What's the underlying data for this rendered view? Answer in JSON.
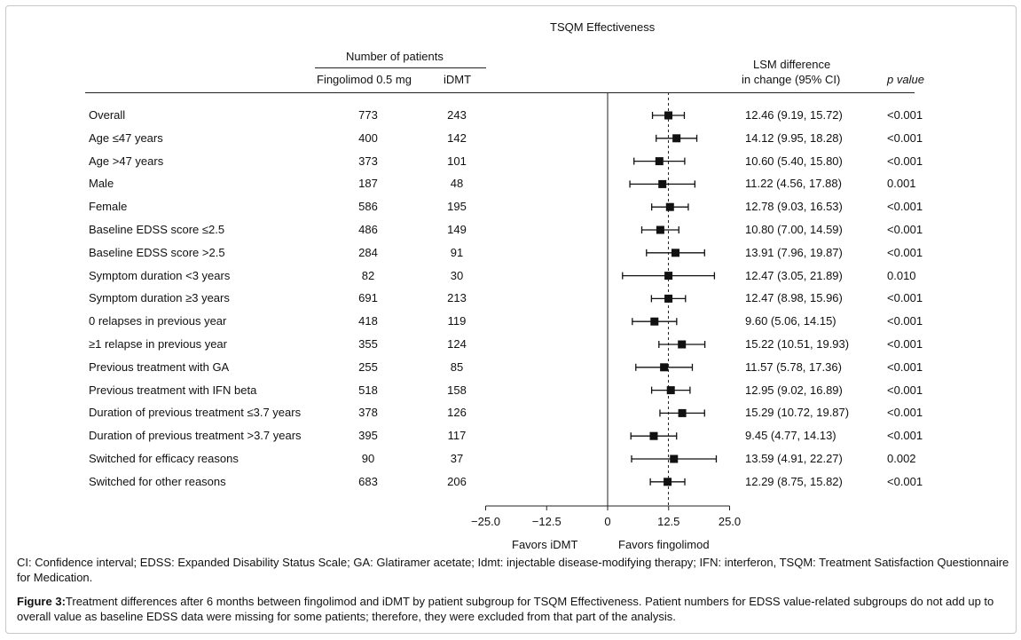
{
  "figure": {
    "panel_title": "TSQM Effectiveness",
    "patients_header": "Number of patients",
    "col_fingolimod": "Fingolimod 0.5 mg",
    "col_idmt": "iDMT",
    "lsm_header_line1": "LSM difference",
    "lsm_header_line2": "in change (95% CI)",
    "p_header": "p value",
    "favors_left": "Favors iDMT",
    "favors_right": "Favors fingolimod",
    "footnote": "CI: Confidence interval; EDSS: Expanded Disability Status Scale; GA: Glatiramer acetate; Idmt: injectable disease-modifying therapy; IFN: interferon, TSQM: Treatment Satisfaction Questionnaire for Medication.",
    "caption_label": "Figure 3:",
    "caption_text": "Treatment differences after 6 months between fingolimod and iDMT by patient subgroup for TSQM Effectiveness. Patient numbers for EDSS value-related subgroups do not add up to overall value as baseline EDSS data were missing for some patients; therefore, they were excluded from that part of the analysis."
  },
  "chart_data": {
    "type": "forest",
    "reference_line": 12.46,
    "xlim": [
      -25,
      25
    ],
    "xticks": [
      "−25.0",
      "−12.5",
      "0",
      "12.5",
      "25.0"
    ],
    "xtick_values": [
      -25,
      -12.5,
      0,
      12.5,
      25
    ],
    "rows": [
      {
        "label": "Overall",
        "fingolimod": "773",
        "idmt": "243",
        "est": 12.46,
        "lo": 9.19,
        "hi": 15.72,
        "ci_text": "12.46 (9.19, 15.72)",
        "p": "<0.001"
      },
      {
        "label": "Age ≤47 years",
        "fingolimod": "400",
        "idmt": "142",
        "est": 14.12,
        "lo": 9.95,
        "hi": 18.28,
        "ci_text": "14.12 (9.95, 18.28)",
        "p": "<0.001"
      },
      {
        "label": "Age >47 years",
        "fingolimod": "373",
        "idmt": "101",
        "est": 10.6,
        "lo": 5.4,
        "hi": 15.8,
        "ci_text": "10.60 (5.40, 15.80)",
        "p": "<0.001"
      },
      {
        "label": "Male",
        "fingolimod": "187",
        "idmt": "48",
        "est": 11.22,
        "lo": 4.56,
        "hi": 17.88,
        "ci_text": "11.22 (4.56, 17.88)",
        "p": "0.001"
      },
      {
        "label": "Female",
        "fingolimod": "586",
        "idmt": "195",
        "est": 12.78,
        "lo": 9.03,
        "hi": 16.53,
        "ci_text": "12.78 (9.03, 16.53)",
        "p": "<0.001"
      },
      {
        "label": "Baseline EDSS score ≤2.5",
        "fingolimod": "486",
        "idmt": "149",
        "est": 10.8,
        "lo": 7.0,
        "hi": 14.59,
        "ci_text": "10.80 (7.00, 14.59)",
        "p": "<0.001"
      },
      {
        "label": "Baseline EDSS score >2.5",
        "fingolimod": "284",
        "idmt": "91",
        "est": 13.91,
        "lo": 7.96,
        "hi": 19.87,
        "ci_text": "13.91 (7.96, 19.87)",
        "p": "<0.001"
      },
      {
        "label": "Symptom duration <3 years",
        "fingolimod": "82",
        "idmt": "30",
        "est": 12.47,
        "lo": 3.05,
        "hi": 21.89,
        "ci_text": "12.47 (3.05, 21.89)",
        "p": "0.010"
      },
      {
        "label": "Symptom duration ≥3 years",
        "fingolimod": "691",
        "idmt": "213",
        "est": 12.47,
        "lo": 8.98,
        "hi": 15.96,
        "ci_text": "12.47 (8.98, 15.96)",
        "p": "<0.001"
      },
      {
        "label": "0 relapses in previous year",
        "fingolimod": "418",
        "idmt": "119",
        "est": 9.6,
        "lo": 5.06,
        "hi": 14.15,
        "ci_text": "9.60 (5.06, 14.15)",
        "p": "<0.001"
      },
      {
        "label": "≥1 relapse in previous year",
        "fingolimod": "355",
        "idmt": "124",
        "est": 15.22,
        "lo": 10.51,
        "hi": 19.93,
        "ci_text": "15.22 (10.51, 19.93)",
        "p": "<0.001"
      },
      {
        "label": "Previous treatment with GA",
        "fingolimod": "255",
        "idmt": "85",
        "est": 11.57,
        "lo": 5.78,
        "hi": 17.36,
        "ci_text": "11.57 (5.78, 17.36)",
        "p": "<0.001"
      },
      {
        "label": "Previous treatment with IFN beta",
        "fingolimod": "518",
        "idmt": "158",
        "est": 12.95,
        "lo": 9.02,
        "hi": 16.89,
        "ci_text": "12.95 (9.02, 16.89)",
        "p": "<0.001"
      },
      {
        "label": "Duration of previous treatment ≤3.7 years",
        "fingolimod": "378",
        "idmt": "126",
        "est": 15.29,
        "lo": 10.72,
        "hi": 19.87,
        "ci_text": "15.29 (10.72, 19.87)",
        "p": "<0.001"
      },
      {
        "label": "Duration of previous treatment >3.7 years",
        "fingolimod": "395",
        "idmt": "117",
        "est": 9.45,
        "lo": 4.77,
        "hi": 14.13,
        "ci_text": "9.45 (4.77, 14.13)",
        "p": "<0.001"
      },
      {
        "label": "Switched for efficacy reasons",
        "fingolimod": "90",
        "idmt": "37",
        "est": 13.59,
        "lo": 4.91,
        "hi": 22.27,
        "ci_text": "13.59 (4.91, 22.27)",
        "p": "0.002"
      },
      {
        "label": "Switched for other reasons",
        "fingolimod": "683",
        "idmt": "206",
        "est": 12.29,
        "lo": 8.75,
        "hi": 15.82,
        "ci_text": "12.29 (8.75, 15.82)",
        "p": "<0.001"
      }
    ]
  }
}
